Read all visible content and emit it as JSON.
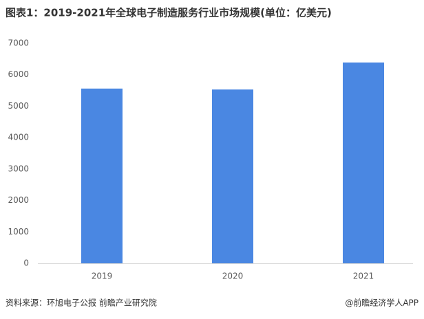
{
  "chart_data": {
    "type": "bar",
    "title": "图表1：2019-2021年全球电子制造服务行业市场规模(单位：亿美元)",
    "categories": [
      "2019",
      "2020",
      "2021"
    ],
    "values": [
      5560,
      5530,
      6390
    ],
    "color": "#4a87e2",
    "ylim": [
      0,
      7000
    ],
    "yticks": [
      0,
      1000,
      2000,
      3000,
      4000,
      5000,
      6000,
      7000
    ],
    "grid": false,
    "source": "资料来源：环旭电子公报 前瞻产业研究院",
    "credit": "@前瞻经济学人APP"
  }
}
